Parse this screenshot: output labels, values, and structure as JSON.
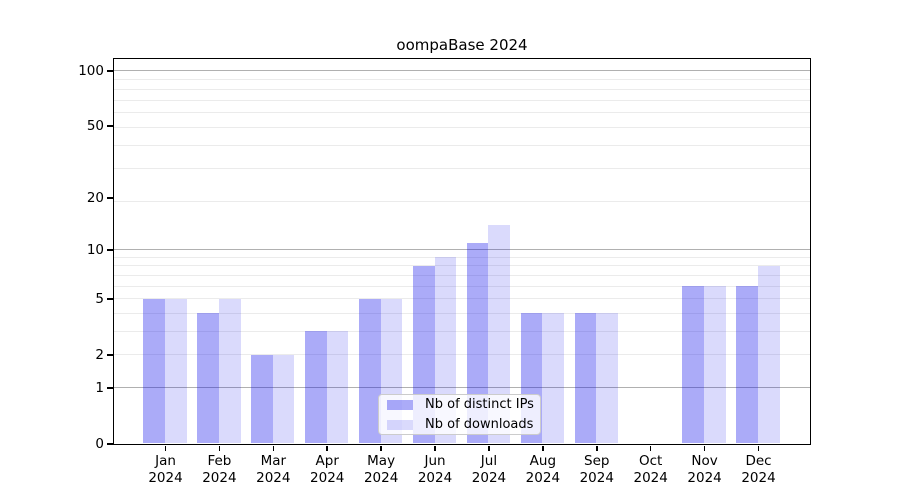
{
  "chart_data": {
    "type": "bar",
    "title": "oompaBase 2024",
    "categories": [
      "Jan",
      "Feb",
      "Mar",
      "Apr",
      "May",
      "Jun",
      "Jul",
      "Aug",
      "Sep",
      "Oct",
      "Nov",
      "Dec"
    ],
    "category_year": "2024",
    "series": [
      {
        "name": "Nb of distinct IPs",
        "color": "rgba(10,10,235,0.34)",
        "values": [
          5,
          4,
          2,
          3,
          5,
          8,
          11,
          4,
          4,
          0,
          6,
          6
        ]
      },
      {
        "name": "Nb of downloads",
        "color": "rgba(10,10,235,0.15)",
        "values": [
          5,
          5,
          2,
          3,
          5,
          9,
          14,
          4,
          4,
          0,
          6,
          8
        ]
      }
    ],
    "yscale": "log10(value+1)",
    "ylim": [
      0,
      116
    ],
    "yticks": [
      0,
      1,
      2,
      5,
      10,
      20,
      50,
      100
    ],
    "major_gridlines": [
      1,
      10,
      100
    ],
    "minor_gridlines": [
      2,
      3,
      4,
      5,
      6,
      7,
      8,
      9,
      19,
      29,
      39,
      49,
      59,
      69,
      79,
      89
    ],
    "grid": "on",
    "legend_position": "lower center",
    "xlabel": "",
    "ylabel": "",
    "colors": {
      "axis": "#000000",
      "major_grid": "#b0b0b0",
      "minor_grid": "#ebebeb",
      "legend_border": "#cccccc",
      "legend_bg": "rgba(255,255,255,0.8)"
    }
  }
}
